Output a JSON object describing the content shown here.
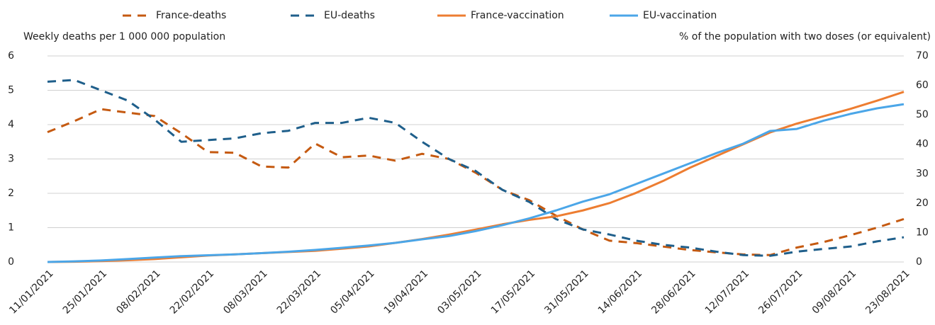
{
  "chart_data": {
    "type": "line",
    "y_label": "Weekly deaths per 1 000 000 population",
    "y2_label": "% of the population with two doses (or equivalent)",
    "categories": [
      "11/01/2021",
      null,
      "25/01/2021",
      null,
      "08/02/2021",
      null,
      "22/02/2021",
      null,
      "08/03/2021",
      null,
      "22/03/2021",
      null,
      "05/04/2021",
      null,
      "19/04/2021",
      null,
      "03/05/2021",
      null,
      "17/05/2021",
      null,
      "31/05/2021",
      null,
      "14/06/2021",
      null,
      "28/06/2021",
      null,
      "12/07/2021",
      null,
      "26/07/2021",
      null,
      "09/08/2021",
      null,
      "23/08/2021"
    ],
    "series": [
      {
        "name": "France-deaths",
        "color": "#c55a11",
        "dashed": true,
        "values": [
          3.78,
          4.1,
          4.45,
          4.35,
          4.25,
          3.75,
          3.2,
          3.18,
          2.78,
          2.75,
          3.45,
          3.05,
          3.1,
          2.95,
          3.15,
          3.0,
          2.6,
          2.1,
          1.8,
          1.35,
          0.95,
          0.62,
          0.55,
          0.45,
          0.35,
          0.28,
          0.22,
          0.2,
          0.42,
          0.58,
          0.78,
          1.0,
          1.25
        ]
      },
      {
        "name": "EU-deaths",
        "color": "#1f5f8b",
        "dashed": true,
        "values": [
          5.25,
          5.3,
          5.0,
          4.7,
          4.15,
          3.5,
          3.55,
          3.6,
          3.75,
          3.82,
          4.05,
          4.05,
          4.2,
          4.05,
          3.5,
          3.0,
          2.65,
          2.1,
          1.75,
          1.25,
          0.95,
          0.8,
          0.62,
          0.5,
          0.42,
          0.3,
          0.2,
          0.18,
          0.3,
          0.38,
          0.45,
          0.6,
          0.72
        ]
      },
      {
        "name": "France-vaccination",
        "color": "#ed7d31",
        "axis": "y2",
        "values": [
          0,
          0.1,
          0.3,
          0.6,
          1,
          1.6,
          2.2,
          2.6,
          3.0,
          3.4,
          3.8,
          4.5,
          5.3,
          6.5,
          7.8,
          9.3,
          11,
          12.8,
          14.3,
          15.5,
          17.5,
          20,
          23.5,
          27.5,
          32,
          36,
          40,
          44,
          47,
          49.5,
          52,
          54.8,
          57.8
        ]
      },
      {
        "name": "EU-vaccination",
        "color": "#4ba6e8",
        "axis": "y2",
        "values": [
          0,
          0.2,
          0.5,
          1,
          1.5,
          2,
          2.3,
          2.6,
          3.0,
          3.5,
          4.1,
          4.8,
          5.6,
          6.5,
          7.7,
          8.8,
          10.5,
          12.5,
          14.8,
          17.5,
          20.5,
          23,
          26.5,
          30,
          33.5,
          37,
          40.2,
          44.5,
          45.2,
          48,
          50.3,
          52.2,
          53.6
        ]
      }
    ],
    "ylim": [
      0,
      6
    ],
    "yticks": [
      0,
      1,
      2,
      3,
      4,
      5,
      6
    ],
    "y2lim": [
      0,
      70
    ],
    "y2ticks": [
      0,
      10,
      20,
      30,
      40,
      50,
      60,
      70
    ],
    "grid": true,
    "legend": "top"
  }
}
